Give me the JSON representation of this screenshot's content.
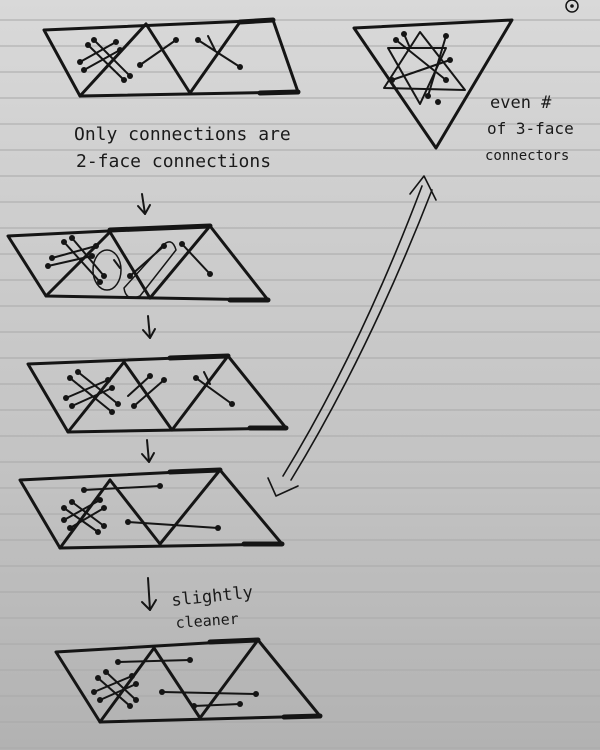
{
  "notes": {
    "only_line1": "Only connections are",
    "only_line2": "2-face connections",
    "even_line1": "even #",
    "even_line2": "of 3-face",
    "even_line3": "connectors",
    "slightly_line1": "slightly",
    "slightly_line2": "cleaner"
  },
  "colors": {
    "ink": "#151515",
    "paper": "#d2d2d2",
    "rule_line": "#a9a9a9"
  },
  "icons": {
    "corner_mark": "circle-dot-icon"
  }
}
